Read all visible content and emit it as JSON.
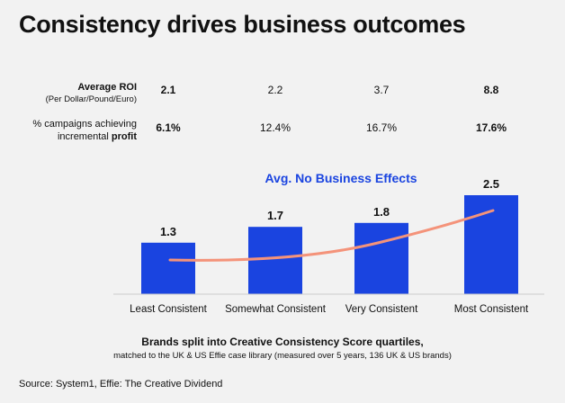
{
  "title": "Consistency drives business outcomes",
  "metrics": [
    {
      "label": "Average ROI",
      "sublabel": "(Per Dollar/Pound/Euro)",
      "values": [
        "2.1",
        "2.2",
        "3.7",
        "8.8"
      ],
      "bold": [
        true,
        false,
        false,
        true
      ]
    },
    {
      "label_line1": "% campaigns achieving",
      "label_line2_prefix": "incremental ",
      "label_line2_bold": "profit",
      "values": [
        "6.1%",
        "12.4%",
        "16.7%",
        "17.6%"
      ],
      "bold": [
        true,
        false,
        false,
        true
      ]
    }
  ],
  "chart_data": {
    "type": "bar",
    "title": "Avg. No Business Effects",
    "categories": [
      "Least Consistent",
      "Somewhat Consistent",
      "Very Consistent",
      "Most Consistent"
    ],
    "values": [
      1.3,
      1.7,
      1.8,
      2.5
    ],
    "data_labels": [
      "1.3",
      "1.7",
      "1.8",
      "2.5"
    ],
    "ylim": [
      0,
      2.5
    ],
    "grid": false,
    "trend_line": true,
    "colors": {
      "bar": "#1a44e0",
      "trend": "#f4937a",
      "title": "#1a44e0",
      "axis": "#cccccc"
    }
  },
  "caption": {
    "main": "Brands split into Creative Consistency Score quartiles,",
    "sub": "matched to the UK & US Effie case library (measured over 5 years, 136 UK & US brands)"
  },
  "source": "Source: System1, Effie: The Creative Dividend"
}
